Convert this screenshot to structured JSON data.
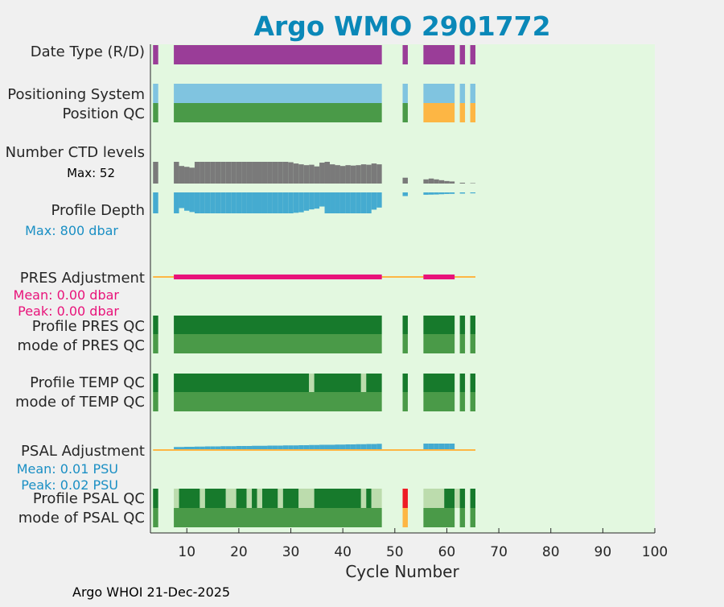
{
  "chart_data": {
    "type": "bar",
    "title": "Argo WMO 2901772",
    "xlabel": "Cycle Number",
    "xlim": [
      3,
      100
    ],
    "xticks": [
      10,
      20,
      30,
      40,
      50,
      60,
      70,
      80,
      90,
      100
    ],
    "footer": "Argo WHOI 21-Dec-2025",
    "colors": {
      "title": "#0a88b8",
      "plot_bg": "#e3f8e0",
      "purple": "#9a3d98",
      "lightblue": "#80c4e0",
      "green": "#4a9a48",
      "darkgreen": "#177a2c",
      "lightgreen": "#bcdcad",
      "orange": "#fdb644",
      "gray": "#7a7a7a",
      "blue": "#45abd0",
      "magenta": "#e8137a",
      "red": "#ee1c25",
      "cyanlabel": "#1a8fc4"
    },
    "row_labels": {
      "date_type": "Date Type (R/D)",
      "positioning_system": "Positioning System",
      "position_qc": "Position QC",
      "ctd_levels": "Number CTD levels",
      "ctd_max": "Max: 52",
      "profile_depth": "Profile Depth",
      "depth_max": "Max:  800 dbar",
      "pres_adjustment": "PRES Adjustment",
      "pres_mean": "Mean: 0.00 dbar",
      "pres_peak": "Peak: 0.00 dbar",
      "profile_pres_qc": "Profile PRES QC",
      "mode_pres_qc": "mode of PRES QC",
      "profile_temp_qc": "Profile TEMP QC",
      "mode_temp_qc": "mode of TEMP QC",
      "psal_adjustment": "PSAL Adjustment",
      "psal_mean": "Mean: 0.01 PSU",
      "psal_peak": "Peak: 0.02 PSU",
      "profile_psal_qc": "Profile PSAL QC",
      "mode_psal_qc": "mode of PSAL QC"
    },
    "segments": {
      "date_type": [
        [
          3.5,
          4.5,
          "purple"
        ],
        [
          7.5,
          47.5,
          "purple"
        ],
        [
          51.5,
          52.5,
          "purple"
        ],
        [
          55.5,
          61.5,
          "purple"
        ],
        [
          62.5,
          63.5,
          "purple"
        ],
        [
          64.5,
          65.5,
          "purple"
        ]
      ],
      "positioning_system": [
        [
          3.5,
          4.5,
          "lightblue"
        ],
        [
          7.5,
          47.5,
          "lightblue"
        ],
        [
          51.5,
          52.5,
          "lightblue"
        ],
        [
          55.5,
          61.5,
          "lightblue"
        ],
        [
          62.5,
          63.5,
          "lightblue"
        ],
        [
          64.5,
          65.5,
          "lightblue"
        ]
      ],
      "position_qc": [
        [
          3.5,
          4.5,
          "green"
        ],
        [
          7.5,
          47.5,
          "green"
        ],
        [
          51.5,
          52.5,
          "green"
        ],
        [
          55.5,
          61.5,
          "orange"
        ],
        [
          62.5,
          63.5,
          "orange"
        ],
        [
          64.5,
          65.5,
          "orange"
        ]
      ],
      "profile_pres_qc": [
        [
          3.5,
          4.5,
          "darkgreen"
        ],
        [
          7.5,
          47.5,
          "darkgreen"
        ],
        [
          51.5,
          52.5,
          "darkgreen"
        ],
        [
          55.5,
          61.5,
          "darkgreen"
        ],
        [
          62.5,
          63.5,
          "darkgreen"
        ],
        [
          64.5,
          65.5,
          "darkgreen"
        ]
      ],
      "mode_pres_qc": [
        [
          3.5,
          4.5,
          "green"
        ],
        [
          7.5,
          47.5,
          "green"
        ],
        [
          51.5,
          52.5,
          "green"
        ],
        [
          55.5,
          61.5,
          "green"
        ],
        [
          62.5,
          63.5,
          "green"
        ],
        [
          64.5,
          65.5,
          "green"
        ]
      ],
      "profile_temp_qc": [
        [
          3.5,
          4.5,
          "darkgreen"
        ],
        [
          7.5,
          33.5,
          "darkgreen"
        ],
        [
          33.5,
          34.5,
          "lightgreen"
        ],
        [
          34.5,
          43.5,
          "darkgreen"
        ],
        [
          43.5,
          44.5,
          "lightgreen"
        ],
        [
          44.5,
          47.5,
          "darkgreen"
        ],
        [
          51.5,
          52.5,
          "darkgreen"
        ],
        [
          55.5,
          61.5,
          "darkgreen"
        ],
        [
          62.5,
          63.5,
          "darkgreen"
        ],
        [
          64.5,
          65.5,
          "darkgreen"
        ]
      ],
      "mode_temp_qc": [
        [
          3.5,
          4.5,
          "green"
        ],
        [
          7.5,
          47.5,
          "green"
        ],
        [
          51.5,
          52.5,
          "green"
        ],
        [
          55.5,
          61.5,
          "green"
        ],
        [
          62.5,
          63.5,
          "green"
        ],
        [
          64.5,
          65.5,
          "green"
        ]
      ],
      "profile_psal_qc": [
        [
          3.5,
          4.5,
          "darkgreen"
        ],
        [
          7.5,
          8.5,
          "lightgreen"
        ],
        [
          8.5,
          12.5,
          "darkgreen"
        ],
        [
          12.5,
          13.5,
          "lightgreen"
        ],
        [
          13.5,
          17.5,
          "darkgreen"
        ],
        [
          17.5,
          19.5,
          "lightgreen"
        ],
        [
          19.5,
          21.5,
          "darkgreen"
        ],
        [
          21.5,
          22.5,
          "lightgreen"
        ],
        [
          22.5,
          23.5,
          "darkgreen"
        ],
        [
          23.5,
          24.5,
          "lightgreen"
        ],
        [
          24.5,
          27.5,
          "darkgreen"
        ],
        [
          27.5,
          28.5,
          "lightgreen"
        ],
        [
          28.5,
          31.5,
          "darkgreen"
        ],
        [
          31.5,
          34.5,
          "lightgreen"
        ],
        [
          34.5,
          43.5,
          "darkgreen"
        ],
        [
          43.5,
          44.5,
          "lightgreen"
        ],
        [
          44.5,
          45.5,
          "darkgreen"
        ],
        [
          45.5,
          47.5,
          "lightgreen"
        ],
        [
          51.5,
          52.5,
          "red"
        ],
        [
          55.5,
          59.5,
          "lightgreen"
        ],
        [
          59.5,
          61.5,
          "darkgreen"
        ],
        [
          61.5,
          62.5,
          "lightgreen"
        ],
        [
          62.5,
          63.5,
          "darkgreen"
        ],
        [
          64.5,
          65.5,
          "darkgreen"
        ]
      ],
      "mode_psal_qc": [
        [
          3.5,
          4.5,
          "green"
        ],
        [
          7.5,
          47.5,
          "green"
        ],
        [
          51.5,
          52.5,
          "orange"
        ],
        [
          55.5,
          61.5,
          "green"
        ],
        [
          62.5,
          63.5,
          "green"
        ],
        [
          64.5,
          65.5,
          "green"
        ]
      ]
    },
    "ctd_levels": [
      [
        4,
        52
      ],
      [
        8,
        52
      ],
      [
        9,
        42
      ],
      [
        10,
        40
      ],
      [
        11,
        38
      ],
      [
        12,
        52
      ],
      [
        13,
        52
      ],
      [
        14,
        52
      ],
      [
        15,
        52
      ],
      [
        16,
        52
      ],
      [
        17,
        52
      ],
      [
        18,
        52
      ],
      [
        19,
        52
      ],
      [
        20,
        52
      ],
      [
        21,
        52
      ],
      [
        22,
        52
      ],
      [
        23,
        52
      ],
      [
        24,
        52
      ],
      [
        25,
        52
      ],
      [
        26,
        52
      ],
      [
        27,
        52
      ],
      [
        28,
        52
      ],
      [
        29,
        52
      ],
      [
        30,
        51
      ],
      [
        31,
        48
      ],
      [
        32,
        46
      ],
      [
        33,
        44
      ],
      [
        34,
        45
      ],
      [
        35,
        41
      ],
      [
        36,
        50
      ],
      [
        37,
        52
      ],
      [
        38,
        46
      ],
      [
        39,
        44
      ],
      [
        40,
        42
      ],
      [
        41,
        44
      ],
      [
        42,
        43
      ],
      [
        43,
        44
      ],
      [
        44,
        46
      ],
      [
        45,
        45
      ],
      [
        46,
        48
      ],
      [
        47,
        46
      ],
      [
        52,
        14
      ],
      [
        56,
        10
      ],
      [
        57,
        12
      ],
      [
        58,
        10
      ],
      [
        59,
        8
      ],
      [
        60,
        6
      ],
      [
        61,
        5
      ],
      [
        63,
        2
      ],
      [
        65,
        1
      ]
    ],
    "profile_depth": [
      [
        4,
        800
      ],
      [
        8,
        800
      ],
      [
        9,
        600
      ],
      [
        10,
        700
      ],
      [
        11,
        750
      ],
      [
        12,
        800
      ],
      [
        13,
        800
      ],
      [
        14,
        800
      ],
      [
        15,
        800
      ],
      [
        16,
        800
      ],
      [
        17,
        800
      ],
      [
        18,
        800
      ],
      [
        19,
        800
      ],
      [
        20,
        800
      ],
      [
        21,
        800
      ],
      [
        22,
        800
      ],
      [
        23,
        800
      ],
      [
        24,
        800
      ],
      [
        25,
        800
      ],
      [
        26,
        800
      ],
      [
        27,
        800
      ],
      [
        28,
        800
      ],
      [
        29,
        800
      ],
      [
        30,
        800
      ],
      [
        31,
        780
      ],
      [
        32,
        760
      ],
      [
        33,
        700
      ],
      [
        34,
        650
      ],
      [
        35,
        620
      ],
      [
        36,
        540
      ],
      [
        37,
        800
      ],
      [
        38,
        800
      ],
      [
        39,
        800
      ],
      [
        40,
        800
      ],
      [
        41,
        800
      ],
      [
        42,
        800
      ],
      [
        43,
        800
      ],
      [
        44,
        800
      ],
      [
        45,
        800
      ],
      [
        46,
        660
      ],
      [
        47,
        580
      ],
      [
        52,
        140
      ],
      [
        56,
        90
      ],
      [
        57,
        85
      ],
      [
        58,
        80
      ],
      [
        59,
        70
      ],
      [
        60,
        60
      ],
      [
        61,
        55
      ],
      [
        63,
        45
      ],
      [
        65,
        35
      ]
    ],
    "depth_max_value": 800,
    "ctd_max_value": 52,
    "pres_adjustment": {
      "line_range": [
        3.5,
        65.5
      ],
      "nonzero": [
        [
          7.5,
          47.5
        ],
        [
          55.5,
          61.5
        ]
      ],
      "mean": 0.0,
      "peak": 0.0
    },
    "psal_adjustment": {
      "line_range": [
        3.5,
        65.5
      ],
      "steps": [
        [
          8,
          0.003
        ],
        [
          9,
          0.003
        ],
        [
          10,
          0.004
        ],
        [
          11,
          0.004
        ],
        [
          12,
          0.005
        ],
        [
          13,
          0.005
        ],
        [
          14,
          0.006
        ],
        [
          15,
          0.006
        ],
        [
          16,
          0.006
        ],
        [
          17,
          0.007
        ],
        [
          18,
          0.007
        ],
        [
          19,
          0.007
        ],
        [
          20,
          0.008
        ],
        [
          21,
          0.008
        ],
        [
          22,
          0.008
        ],
        [
          23,
          0.009
        ],
        [
          24,
          0.009
        ],
        [
          25,
          0.009
        ],
        [
          26,
          0.01
        ],
        [
          27,
          0.01
        ],
        [
          28,
          0.01
        ],
        [
          29,
          0.011
        ],
        [
          30,
          0.011
        ],
        [
          31,
          0.011
        ],
        [
          32,
          0.012
        ],
        [
          33,
          0.012
        ],
        [
          34,
          0.013
        ],
        [
          35,
          0.013
        ],
        [
          36,
          0.014
        ],
        [
          37,
          0.014
        ],
        [
          38,
          0.014
        ],
        [
          39,
          0.015
        ],
        [
          40,
          0.015
        ],
        [
          41,
          0.016
        ],
        [
          42,
          0.016
        ],
        [
          43,
          0.017
        ],
        [
          44,
          0.017
        ],
        [
          45,
          0.018
        ],
        [
          46,
          0.018
        ],
        [
          47,
          0.019
        ],
        [
          56,
          0.02
        ],
        [
          57,
          0.02
        ],
        [
          58,
          0.02
        ],
        [
          59,
          0.02
        ],
        [
          60,
          0.02
        ],
        [
          61,
          0.02
        ]
      ],
      "mean": 0.01,
      "peak": 0.02
    }
  }
}
